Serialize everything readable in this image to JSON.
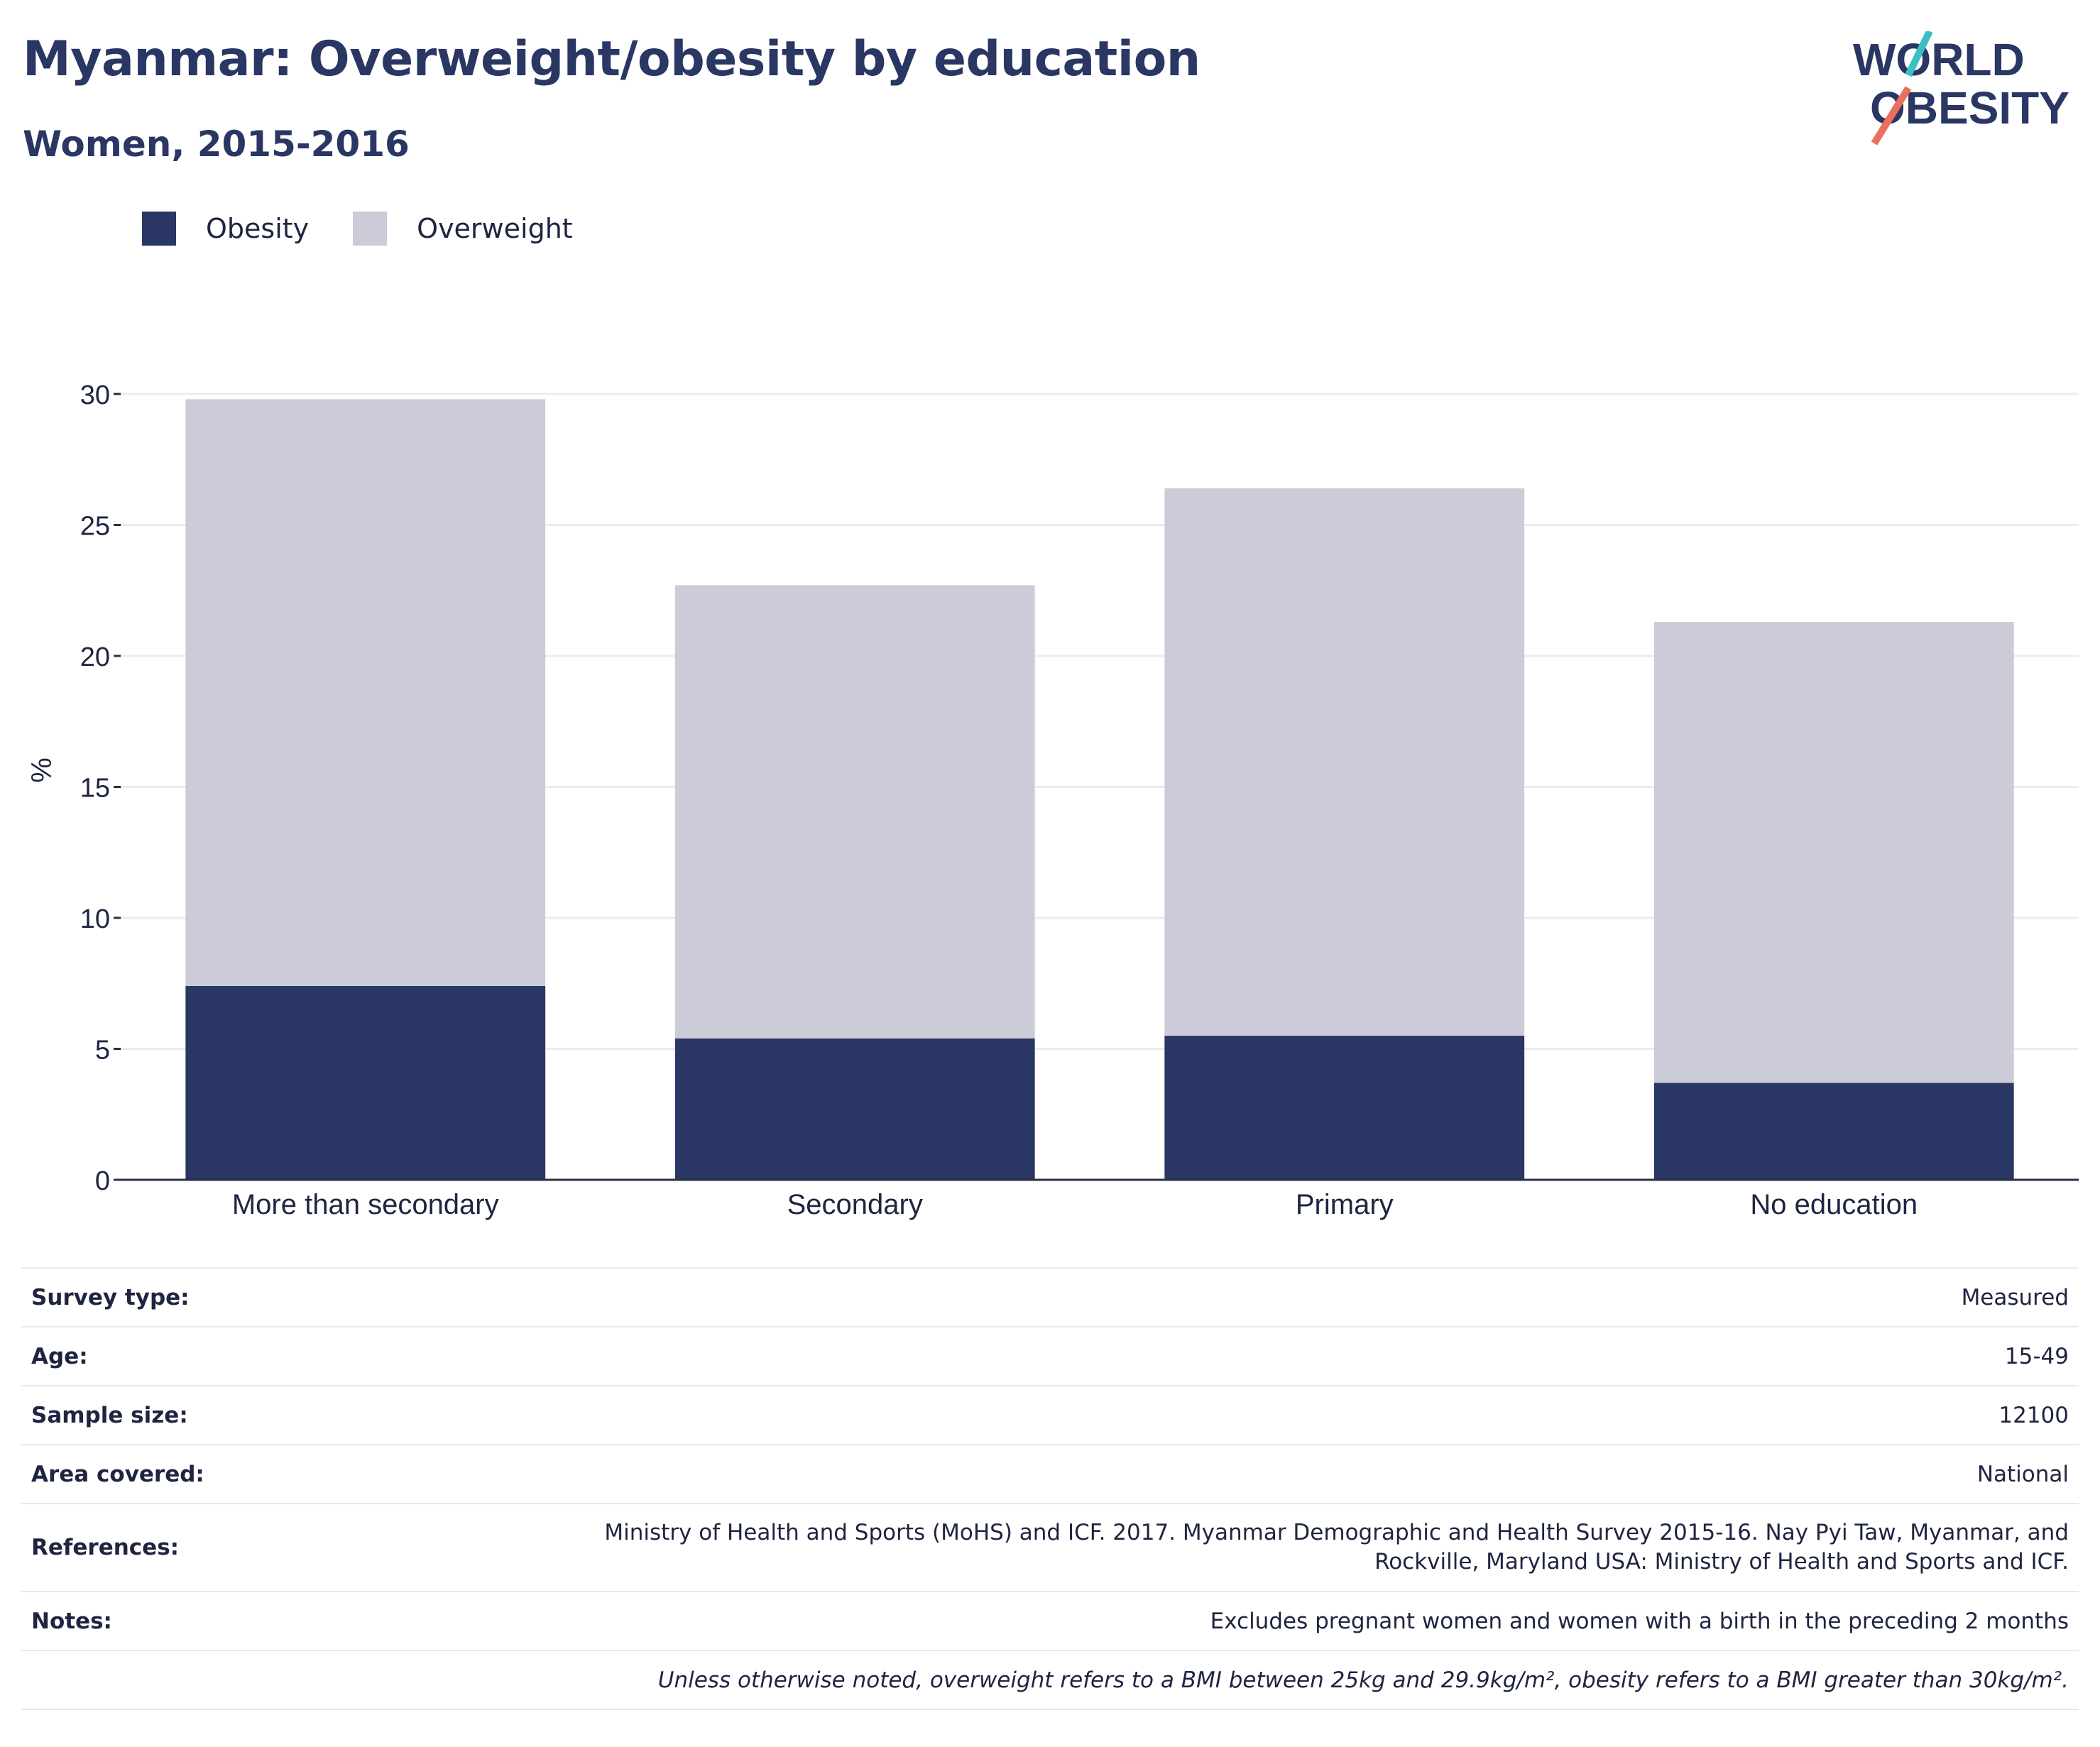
{
  "header": {
    "title": "Myanmar: Overweight/obesity by education",
    "subtitle": "Women, 2015-2016",
    "logo_line1": "WORLD",
    "logo_line2": "OBESITY"
  },
  "legend": {
    "obesity": "Obesity",
    "overweight": "Overweight"
  },
  "colors": {
    "obesity": "#2a3663",
    "overweight": "#cbccd8",
    "logo_teal": "#3bbfc4",
    "logo_coral": "#e8715d"
  },
  "chart_data": {
    "type": "bar",
    "stacked": true,
    "categories": [
      "More than secondary",
      "Secondary",
      "Primary",
      "No education"
    ],
    "series": [
      {
        "name": "Obesity",
        "values": [
          7.4,
          5.4,
          5.5,
          3.7
        ]
      },
      {
        "name": "Overweight",
        "values": [
          22.4,
          17.3,
          20.9,
          17.6
        ]
      }
    ],
    "ylabel": "%",
    "ylim": [
      0,
      30
    ],
    "yticks": [
      "0",
      "5",
      "10",
      "15",
      "20",
      "25",
      "30"
    ],
    "grid": true,
    "legend_position": "top-left"
  },
  "meta": {
    "survey_type_label": "Survey type:",
    "survey_type": "Measured",
    "age_label": "Age:",
    "age": "15-49",
    "sample_size_label": "Sample size:",
    "sample_size": "12100",
    "area_label": "Area covered:",
    "area": "National",
    "references_label": "References:",
    "references_line1": "Ministry of Health and Sports (MoHS) and ICF. 2017. Myanmar Demographic and Health Survey 2015-16. Nay Pyi Taw, Myanmar, and",
    "references_line2": "Rockville, Maryland USA: Ministry of Health and Sports and ICF.",
    "notes_label": "Notes:",
    "notes": "Excludes pregnant women and women with a birth in the preceding 2 months",
    "footnote": "Unless otherwise noted, overweight refers to a BMI between 25kg and 29.9kg/m², obesity refers to a BMI greater than 30kg/m²."
  }
}
